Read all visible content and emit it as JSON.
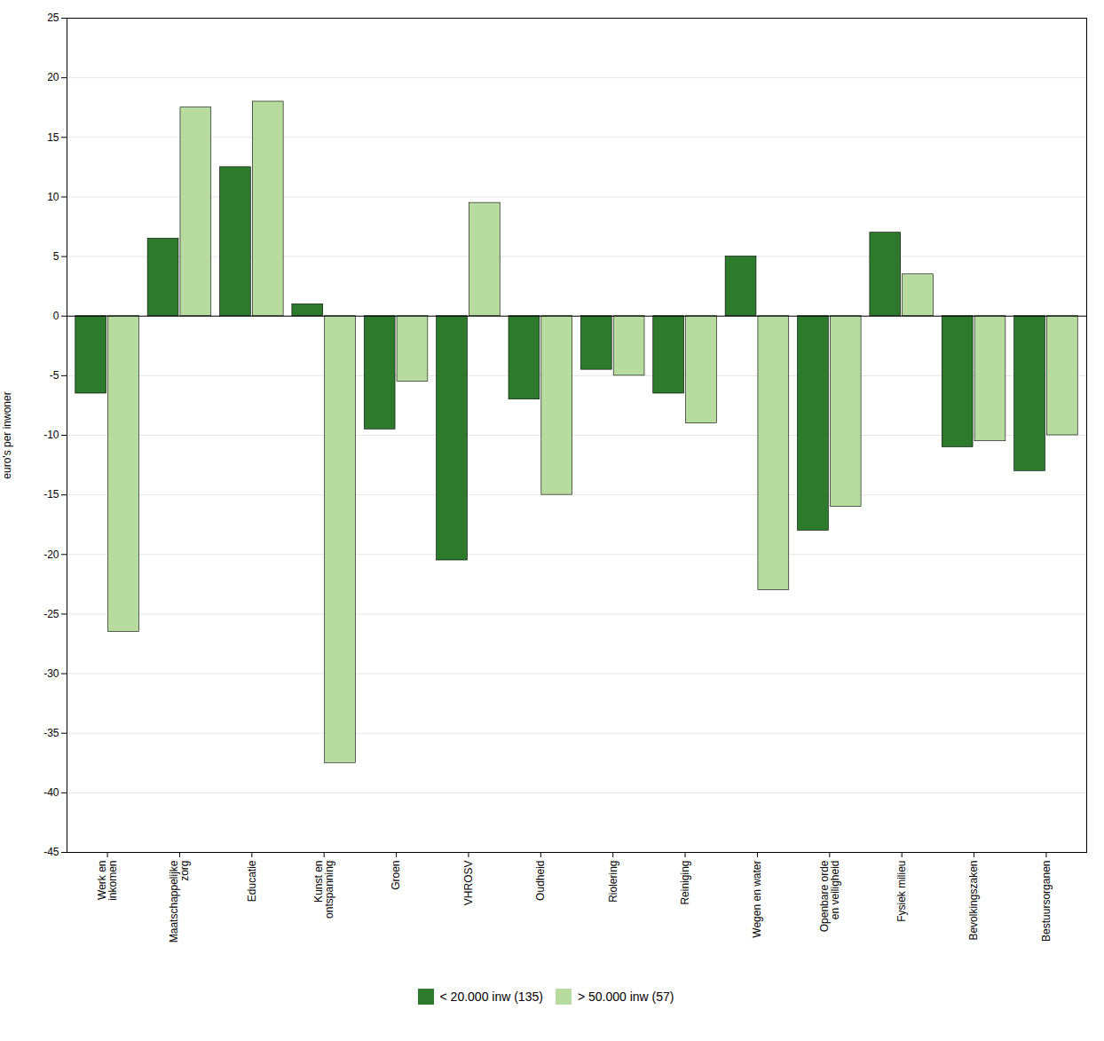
{
  "chart_data": {
    "type": "bar",
    "categories": [
      "Werk en\ninkomen",
      "Maatschappelijke\nzorg",
      "Educatie",
      "Kunst en\nontspanning",
      "Groen",
      "VHROSV",
      "Oudheid",
      "Riolering",
      "Reiniging",
      "Wegen en water",
      "Openbare orde\nen veiligheid",
      "Fysiek milieu",
      "Bevolkingszaken",
      "Bestuursorganen"
    ],
    "series": [
      {
        "name": "< 20.000 inw (135)",
        "color": "#2d7a2d",
        "values": [
          -6.5,
          6.5,
          12.5,
          1.0,
          -9.5,
          -20.5,
          -7.0,
          -4.5,
          -6.5,
          5.0,
          -18.0,
          7.0,
          -11.0,
          -13.0
        ]
      },
      {
        "name": "> 50.000 inw (57)",
        "color": "#b8dba0",
        "values": [
          -26.5,
          17.5,
          18.0,
          -37.5,
          -5.5,
          9.5,
          -15.0,
          -5.0,
          -9.0,
          -23.0,
          -16.0,
          3.5,
          -10.5,
          -10.0
        ]
      }
    ],
    "ylabel": "euro's per inwoner",
    "ylim": [
      -45,
      25
    ],
    "yticks": [
      25,
      20,
      15,
      10,
      5,
      0,
      -5,
      -10,
      -15,
      -20,
      -25,
      -30,
      -35,
      -40,
      -45
    ],
    "grid": true,
    "legend": "bottom"
  }
}
